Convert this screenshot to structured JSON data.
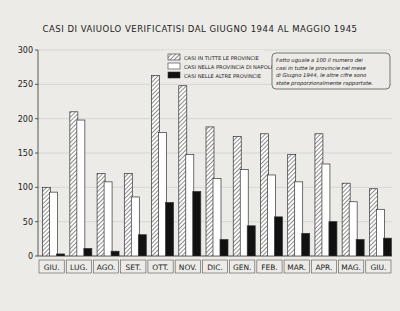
{
  "chart_data": {
    "type": "bar",
    "title": "CASI DI VAIUOLO VERIFICATISI DAL GIUGNO 1944 AL MAGGIO 1945",
    "categories": [
      "GIU.",
      "LUG.",
      "AGO.",
      "SET.",
      "OTT.",
      "NOV.",
      "DIC.",
      "GEN.",
      "FEB.",
      "MAR.",
      "APR.",
      "MAG.",
      "GIU."
    ],
    "series": [
      {
        "name": "CASI IN TUTTE LE PROVINCIE",
        "color": "#444444",
        "values": [
          100,
          210,
          120,
          120,
          263,
          248,
          188,
          174,
          178,
          148,
          178,
          106,
          98
        ]
      },
      {
        "name": "CASI NELLA PROVINCIA DI NAPOLI",
        "color": "#ffffff",
        "values": [
          93,
          198,
          108,
          86,
          180,
          148,
          113,
          126,
          118,
          108,
          134,
          79,
          68
        ]
      },
      {
        "name": "CASI NELLE ALTRE PROVINCIE",
        "color": "#111111",
        "values": [
          3,
          11,
          7,
          31,
          78,
          94,
          24,
          44,
          57,
          33,
          50,
          24,
          26
        ]
      }
    ],
    "annotation": [
      "Fatto uguale a 100 il numero dei",
      "casi in tutte le provincie nel mese",
      "di Giugno 1944, le altre cifre sono",
      "state proporzionalmente rapportate."
    ],
    "ylim": [
      0,
      300
    ],
    "yticks": [
      0,
      50,
      100,
      150,
      200,
      250,
      300
    ],
    "grid": true,
    "legend": "top"
  }
}
